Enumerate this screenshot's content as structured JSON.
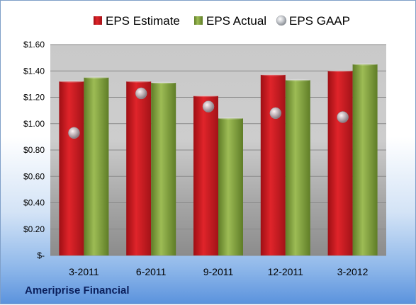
{
  "chart_data": {
    "type": "bar",
    "categories": [
      "3-2011",
      "6-2011",
      "9-2011",
      "12-2011",
      "3-2012"
    ],
    "series": [
      {
        "name": "EPS Estimate",
        "type": "bar",
        "color": "#c0171d",
        "values": [
          1.32,
          1.32,
          1.21,
          1.37,
          1.4
        ]
      },
      {
        "name": "EPS Actual",
        "type": "bar",
        "color": "#7a9a3a",
        "values": [
          1.35,
          1.31,
          1.04,
          1.33,
          1.45
        ]
      },
      {
        "name": "EPS GAAP",
        "type": "scatter",
        "color": "#b8bcc2",
        "values": [
          0.93,
          1.23,
          1.13,
          1.08,
          1.05
        ]
      }
    ],
    "ylim": [
      0,
      1.6
    ],
    "yticks": [
      0,
      0.2,
      0.4,
      0.6,
      0.8,
      1.0,
      1.2,
      1.4,
      1.6
    ],
    "ytick_labels": [
      "$-",
      "$0.20",
      "$0.40",
      "$0.60",
      "$0.80",
      "$1.00",
      "$1.20",
      "$1.40",
      "$1.60"
    ],
    "grid": true,
    "legend_position": "top"
  },
  "footer": {
    "company": "Ameriprise Financial"
  }
}
